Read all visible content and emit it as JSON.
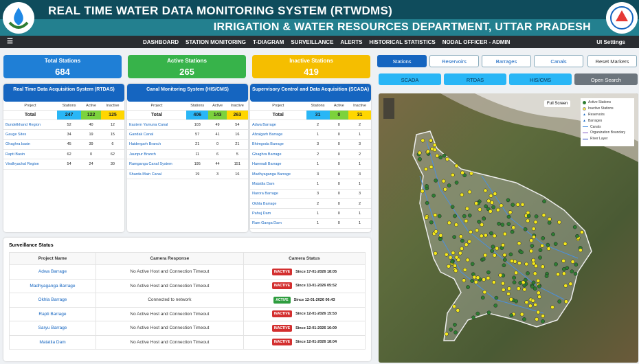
{
  "header": {
    "title": "REAL TIME WATER DATA MONITORING SYSTEM (RTWDMS)",
    "subtitle": "IRRIGATION & WATER RESOURCES DEPARTMENT, UTTAR PRADESH"
  },
  "nav": {
    "items": [
      "DASHBOARD",
      "STATION MONITORING",
      "T-DIAGRAM",
      "SURVEILLANCE",
      "ALERTS",
      "HISTORICAL STATISTICS"
    ],
    "user": "NODAL OFFICER - ADMIN",
    "settings": "UI Settings"
  },
  "cards": [
    {
      "label": "Total Stations",
      "value": 684
    },
    {
      "label": "Active Stations",
      "value": 265
    },
    {
      "label": "Inactive Stations",
      "value": 419
    }
  ],
  "panels": [
    {
      "title": "Real Time Data Acquisition System (RTDAS)",
      "columns": [
        "Project",
        "Stations",
        "Active",
        "Inactive"
      ],
      "total_label": "Total",
      "total": [
        247,
        122,
        125
      ],
      "rows": [
        [
          "Bundelkhand Region",
          52,
          40,
          12
        ],
        [
          "Gauge Sites",
          34,
          19,
          15
        ],
        [
          "Ghaghra basin",
          45,
          39,
          6
        ],
        [
          "Rapti Basin",
          62,
          0,
          62
        ],
        [
          "Vindhyachal Region",
          54,
          24,
          30
        ]
      ]
    },
    {
      "title": "Canal Monitoring System (HIS/CMS)",
      "columns": [
        "Project",
        "Stations",
        "Active",
        "Inactive"
      ],
      "total_label": "Total",
      "total": [
        406,
        143,
        263
      ],
      "rows": [
        [
          "Eastern Yamuna Canal",
          103,
          49,
          54
        ],
        [
          "Gandak Canal",
          57,
          41,
          16
        ],
        [
          "Haidergarh Branch",
          21,
          0,
          21
        ],
        [
          "Jaunpur Branch",
          11,
          6,
          5
        ],
        [
          "Ramganga Canal System",
          195,
          44,
          151
        ],
        [
          "Sharda Main Canal",
          19,
          3,
          16
        ]
      ]
    },
    {
      "title": "Supervisory Control and Data Acquisition (SCADA)",
      "columns": [
        "Project",
        "Stations",
        "Active",
        "Inactive"
      ],
      "total_label": "Total",
      "total": [
        31,
        0,
        31
      ],
      "rows": [
        [
          "Adwa Barrage",
          2,
          0,
          2
        ],
        [
          "Afzalgarh Barrage",
          1,
          0,
          1
        ],
        [
          "Bhimgoda Barrage",
          3,
          0,
          3
        ],
        [
          "Ghaghra Barrage",
          2,
          0,
          2
        ],
        [
          "Harewali Barrage",
          1,
          0,
          1
        ],
        [
          "Madhyaganga Barrage",
          3,
          0,
          3
        ],
        [
          "Matatila Dam",
          1,
          0,
          1
        ],
        [
          "Narora Barrage",
          3,
          0,
          3
        ],
        [
          "Okhla Barrage",
          2,
          0,
          2
        ],
        [
          "Pahuj Dam",
          1,
          0,
          1
        ],
        [
          "Ram Ganga Dam",
          1,
          0,
          1
        ]
      ]
    }
  ],
  "surveillance": {
    "title": "Surveillance Status",
    "columns": [
      "Project Name",
      "Camera Response",
      "Camera Status"
    ],
    "rows": [
      {
        "project": "Adwa Barrage",
        "response": "No Active Host and Connection Timeout",
        "status": "INACTIVE",
        "since": "Since 17-01-2026 18:05"
      },
      {
        "project": "Madhyaganga Barrage",
        "response": "No Active Host and Connection Timeout",
        "status": "INACTIVE",
        "since": "Since 13-01-2026 05:52"
      },
      {
        "project": "Okhla Barrage",
        "response": "Connected to network",
        "status": "ACTIVE",
        "since": "Since 12-01-2026 06:43"
      },
      {
        "project": "Rapti Barrage",
        "response": "No Active Host and Connection Timeout",
        "status": "INACTIVE",
        "since": "Since 12-01-2026 15:53"
      },
      {
        "project": "Saryu Barrage",
        "response": "No Active Host and Connection Timeout",
        "status": "INACTIVE",
        "since": "Since 12-01-2026 16:09"
      },
      {
        "project": "Matatila Dam",
        "response": "No Active Host and Connection Timeout",
        "status": "INACTIVE",
        "since": "Since 12-01-2026 18:04"
      }
    ]
  },
  "map": {
    "tabs": [
      "Stations",
      "Reservoirs",
      "Barrages",
      "Canals"
    ],
    "reset": "Reset Markers",
    "filters": [
      "SCADA",
      "RTDAS",
      "HIS/CMS"
    ],
    "search": "Open Search",
    "fullscreen": "Full Screen",
    "legend": [
      "Active Stations",
      "Inactive Stations",
      "Reservoirs",
      "Barrages",
      "Canals",
      "Organization Boundary",
      "River Layer"
    ]
  }
}
